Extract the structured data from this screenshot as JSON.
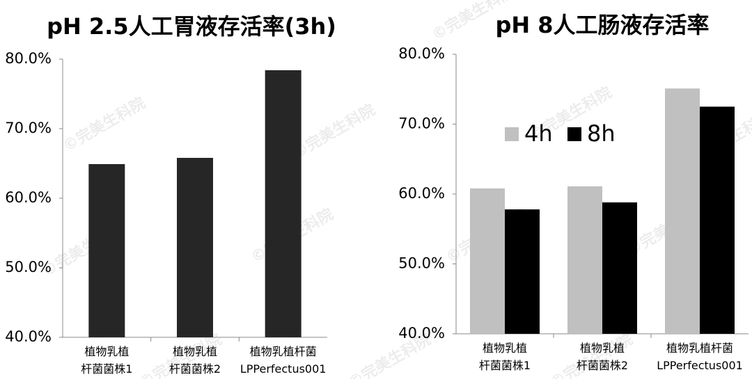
{
  "watermark": "©完美生科院",
  "chart_data": [
    {
      "type": "bar",
      "title": "pH 2.5人工胃液存活率(3h)",
      "categories": [
        "植物乳植\n杆菌菌株1",
        "植物乳植\n杆菌菌株2",
        "植物乳植杆菌\nLPPerfectus001"
      ],
      "values": [
        64.9,
        65.8,
        78.4
      ],
      "color": "#262626",
      "ylim": [
        40,
        80
      ],
      "yticks": [
        {
          "value": 40,
          "label": "40.0%"
        },
        {
          "value": 50,
          "label": "50.0%"
        },
        {
          "value": 60,
          "label": "60.0%"
        },
        {
          "value": 70,
          "label": "70.0%"
        },
        {
          "value": 80,
          "label": "80.0%"
        }
      ],
      "grid": false
    },
    {
      "type": "grouped-bar",
      "title": "pH 8人工肠液存活率",
      "categories": [
        "植物乳植\n杆菌菌株1",
        "植物乳植\n杆菌菌株2",
        "植物乳植杆菌\nLPPerfectus001"
      ],
      "series": [
        {
          "name": "4h",
          "color": "#c0c0c0",
          "values": [
            60.8,
            61.1,
            75.1
          ]
        },
        {
          "name": "8h",
          "color": "#000000",
          "values": [
            57.8,
            58.8,
            72.5
          ]
        }
      ],
      "ylim": [
        40,
        80
      ],
      "yticks": [
        {
          "value": 40,
          "label": "40.0%"
        },
        {
          "value": 50,
          "label": "50.0%"
        },
        {
          "value": 60,
          "label": "60.0%"
        },
        {
          "value": 70,
          "label": "70.0%"
        },
        {
          "value": 80,
          "label": "80.0%"
        }
      ],
      "grid": false,
      "legend": "center"
    }
  ]
}
